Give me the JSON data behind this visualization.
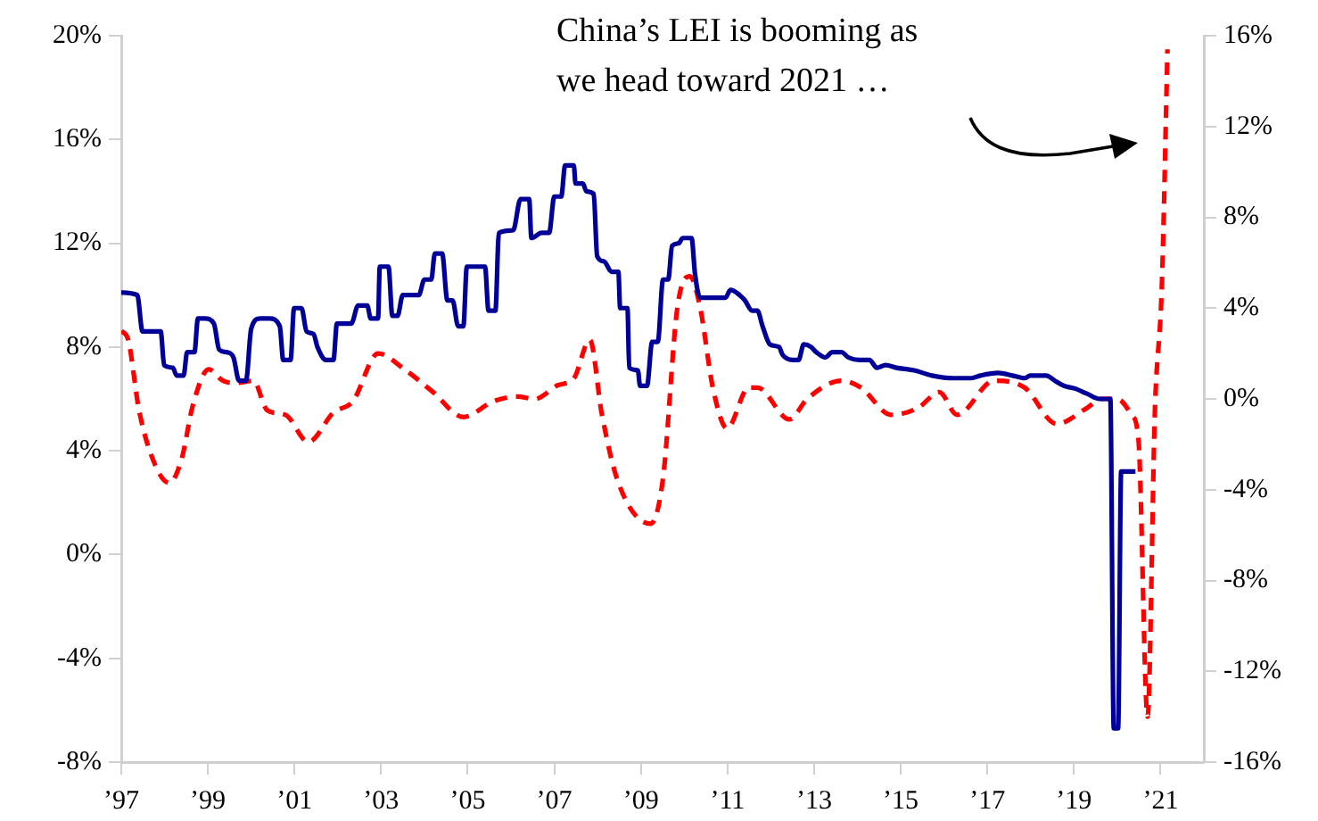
{
  "chart_data": {
    "type": "line",
    "annotations": [
      "China’s LEI is booming as we head toward 2021 …"
    ],
    "xlim": [
      1997,
      2022
    ],
    "xticks": [
      {
        "value": 1997,
        "label": "’97"
      },
      {
        "value": 1999,
        "label": "’99"
      },
      {
        "value": 2001,
        "label": "’01"
      },
      {
        "value": 2003,
        "label": "’03"
      },
      {
        "value": 2005,
        "label": "’05"
      },
      {
        "value": 2007,
        "label": "’07"
      },
      {
        "value": 2009,
        "label": "’09"
      },
      {
        "value": 2011,
        "label": "’11"
      },
      {
        "value": 2013,
        "label": "’13"
      },
      {
        "value": 2015,
        "label": "’15"
      },
      {
        "value": 2017,
        "label": "’17"
      },
      {
        "value": 2019,
        "label": "’19"
      },
      {
        "value": 2021,
        "label": "’21"
      }
    ],
    "ylim": [
      -8,
      20
    ],
    "yticks": [
      {
        "value": -8,
        "label": "-8%"
      },
      {
        "value": -4,
        "label": "-4%"
      },
      {
        "value": 0,
        "label": "0%"
      },
      {
        "value": 4,
        "label": "4%"
      },
      {
        "value": 8,
        "label": "8%"
      },
      {
        "value": 12,
        "label": "12%"
      },
      {
        "value": 16,
        "label": "16%"
      },
      {
        "value": 20,
        "label": "20%"
      }
    ],
    "y2lim": [
      -16,
      16
    ],
    "y2ticks": [
      {
        "value": -16,
        "label": "-16%"
      },
      {
        "value": -12,
        "label": "-12%"
      },
      {
        "value": -8,
        "label": "-8%"
      },
      {
        "value": -4,
        "label": "-4%"
      },
      {
        "value": 0,
        "label": "0%"
      },
      {
        "value": 4,
        "label": "4%"
      },
      {
        "value": 8,
        "label": "8%"
      },
      {
        "value": 12,
        "label": "12%"
      },
      {
        "value": 16,
        "label": "16%"
      }
    ],
    "marker": "none",
    "series": [
      {
        "color": "#000099",
        "line_style": "solid",
        "x": [
          1997.0,
          1997.37,
          1997.49,
          1997.91,
          1997.99,
          1998.19,
          1998.28,
          1998.44,
          1998.52,
          1998.69,
          1998.77,
          1998.93,
          1999.14,
          1999.26,
          1999.43,
          1999.59,
          1999.72,
          1999.88,
          2000.0,
          2000.21,
          2000.42,
          2000.66,
          2000.74,
          2000.91,
          2000.99,
          2001.16,
          2001.28,
          2001.44,
          2001.53,
          2001.73,
          2001.9,
          2001.98,
          2002.31,
          2002.47,
          2002.68,
          2002.76,
          2002.93,
          2002.97,
          2003.17,
          2003.26,
          2003.38,
          2003.5,
          2003.87,
          2004.0,
          2004.16,
          2004.24,
          2004.41,
          2004.53,
          2004.65,
          2004.78,
          2004.9,
          2004.98,
          2005.4,
          2005.48,
          2005.64,
          2005.72,
          2006.05,
          2006.22,
          2006.42,
          2006.47,
          2006.71,
          2006.88,
          2007.0,
          2007.16,
          2007.25,
          2007.45,
          2007.49,
          2007.66,
          2007.74,
          2007.91,
          2007.99,
          2008.15,
          2008.32,
          2008.48,
          2008.52,
          2008.69,
          2008.73,
          2008.93,
          2008.98,
          2009.14,
          2009.26,
          2009.39,
          2009.51,
          2009.63,
          2009.72,
          2009.88,
          2009.96,
          2010.17,
          2010.25,
          2010.37,
          2010.54,
          2010.95,
          2011.07,
          2011.28,
          2011.4,
          2011.57,
          2011.69,
          2011.81,
          2011.98,
          2012.19,
          2012.27,
          2012.51,
          2012.64,
          2012.76,
          2012.93,
          2013.05,
          2013.26,
          2013.42,
          2013.63,
          2013.79,
          2014.04,
          2014.28,
          2014.45,
          2014.65,
          2014.9,
          2015.31,
          2015.72,
          2016.22,
          2016.63,
          2016.84,
          2017.25,
          2017.58,
          2017.86,
          2017.99,
          2018.36,
          2018.56,
          2018.77,
          2019.02,
          2019.3,
          2019.59,
          2019.84,
          2019.92,
          2020.02,
          2020.09,
          2020.42
        ],
        "values": [
          10.1,
          10.0,
          8.6,
          8.6,
          7.3,
          7.2,
          6.9,
          6.9,
          7.8,
          7.8,
          9.1,
          9.1,
          8.9,
          7.9,
          7.8,
          7.6,
          6.7,
          6.7,
          8.7,
          9.1,
          9.1,
          8.8,
          7.5,
          7.5,
          9.5,
          9.5,
          8.6,
          8.5,
          8.0,
          7.5,
          7.5,
          8.9,
          8.9,
          9.6,
          9.6,
          9.1,
          9.1,
          11.1,
          11.1,
          9.2,
          9.2,
          10.0,
          10.0,
          10.6,
          10.6,
          11.6,
          11.6,
          9.8,
          9.8,
          8.8,
          8.8,
          11.1,
          11.1,
          9.4,
          9.4,
          12.4,
          12.5,
          13.7,
          13.7,
          12.2,
          12.4,
          12.4,
          13.8,
          13.8,
          15.0,
          15.0,
          14.3,
          14.3,
          14.0,
          13.9,
          11.5,
          11.3,
          10.9,
          10.9,
          9.5,
          9.5,
          7.2,
          7.1,
          6.5,
          6.5,
          8.2,
          8.2,
          10.6,
          10.6,
          11.9,
          12.0,
          12.2,
          12.2,
          10.8,
          9.9,
          9.9,
          9.9,
          10.2,
          10.0,
          9.8,
          9.4,
          9.4,
          8.8,
          8.1,
          8.0,
          7.7,
          7.5,
          7.5,
          8.1,
          8.0,
          7.8,
          7.6,
          7.8,
          7.8,
          7.6,
          7.5,
          7.5,
          7.2,
          7.3,
          7.2,
          7.1,
          6.9,
          6.8,
          6.8,
          6.9,
          7.0,
          6.9,
          6.8,
          6.9,
          6.9,
          6.7,
          6.5,
          6.4,
          6.2,
          6.0,
          6.0,
          -6.7,
          -6.7,
          3.2,
          3.2
        ]
      },
      {
        "color": "#ff0000",
        "line_style": "dashed",
        "axis": "y2",
        "x": [
          1997.0,
          1997.16,
          1997.41,
          1997.78,
          1998.11,
          1998.4,
          1998.65,
          1999.02,
          1999.35,
          1999.63,
          2000.05,
          2000.37,
          2000.79,
          2001.32,
          2001.9,
          2002.35,
          2002.93,
          2003.54,
          2004.2,
          2004.9,
          2005.6,
          2006.14,
          2006.55,
          2007.08,
          2007.45,
          2007.82,
          2008.1,
          2008.48,
          2009.22,
          2009.51,
          2009.84,
          2010.13,
          2010.37,
          2010.66,
          2010.99,
          2011.49,
          2011.69,
          2012.43,
          2012.84,
          2013.63,
          2014.08,
          2014.78,
          2015.4,
          2015.89,
          2016.3,
          2017.16,
          2017.86,
          2018.6,
          2019.3,
          2019.63,
          2020.0,
          2020.33,
          2020.49,
          2020.7,
          2020.87,
          2021.03,
          2021.16
        ],
        "values": [
          3.0,
          2.6,
          -0.5,
          -2.9,
          -3.7,
          -2.6,
          -0.3,
          1.3,
          0.8,
          0.7,
          0.8,
          -0.5,
          -0.7,
          -1.9,
          -0.6,
          -0.1,
          2.0,
          1.3,
          0.3,
          -0.8,
          -0.1,
          0.1,
          0.0,
          0.6,
          0.9,
          2.6,
          -0.7,
          -3.7,
          -5.5,
          -3.5,
          4.0,
          5.4,
          4.0,
          0.5,
          -1.3,
          0.5,
          0.5,
          -0.9,
          0.0,
          0.8,
          0.5,
          -0.7,
          -0.4,
          0.3,
          -0.7,
          0.8,
          0.5,
          -1.1,
          -0.4,
          0.0,
          0.0,
          -0.7,
          -1.8,
          -14.0,
          -0.5,
          5.0,
          15.4
        ]
      }
    ]
  }
}
